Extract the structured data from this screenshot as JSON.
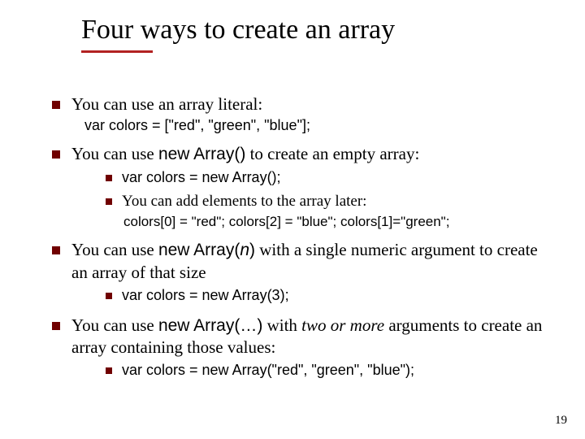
{
  "title": "Four ways to create an array",
  "b1": {
    "text": "You can use an array literal:",
    "code": "var colors = [\"red\", \"green\", \"blue\"];"
  },
  "b2": {
    "prefix": "You can use ",
    "kw": "new Array()",
    "suffix": " to create an empty array:",
    "s1": "var colors = new Array();",
    "s2": "You can add elements to the array later:",
    "s2code": "colors[0] = \"red\"; colors[2] = \"blue\"; colors[1]=\"green\";"
  },
  "b3": {
    "prefix": "You can use ",
    "kw1": "new Array(",
    "arg": "n",
    "kw2": ")",
    "suffix": " with a single numeric argument to create an array of that size",
    "s1": "var colors = new Array(3);"
  },
  "b4": {
    "prefix": "You can use ",
    "kw": "new Array(…)",
    "mid": " with ",
    "ital": "two or more",
    "suffix": " arguments to create an array containing those values:",
    "s1": "var colors = new Array(\"red\", \"green\", \"blue\");"
  },
  "pagenum": "19"
}
